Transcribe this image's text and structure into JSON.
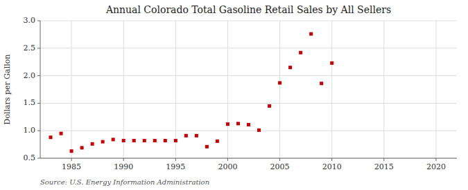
{
  "chart_data": {
    "type": "scatter",
    "title": "Annual Colorado Total Gasoline Retail Sales by All Sellers",
    "y_label": "Dollars per Gallon",
    "source": "Source: U.S. Energy Information Administration",
    "x": [
      1983,
      1984,
      1985,
      1986,
      1987,
      1988,
      1989,
      1990,
      1991,
      1992,
      1993,
      1994,
      1995,
      1996,
      1997,
      1998,
      1999,
      2000,
      2001,
      2002,
      2003,
      2004,
      2005,
      2006,
      2007,
      2008,
      2009,
      2010
    ],
    "values": [
      0.88,
      0.95,
      0.63,
      0.69,
      0.76,
      0.8,
      0.84,
      0.82,
      0.82,
      0.82,
      0.82,
      0.82,
      0.82,
      0.91,
      0.91,
      0.71,
      0.81,
      1.12,
      1.13,
      1.11,
      1.01,
      1.45,
      1.87,
      2.15,
      2.42,
      2.76,
      1.86,
      2.23
    ],
    "color": "#cc0000",
    "marker": "square",
    "xlim": [
      1982,
      2022
    ],
    "ylim": [
      0.5,
      3.0
    ],
    "xticks": [
      1985,
      1990,
      1995,
      2000,
      2005,
      2010,
      2015,
      2020
    ],
    "yticks": [
      0.5,
      {
        "value": 1,
        "label": "1.0"
      },
      1.5,
      {
        "value": 2,
        "label": "2.0"
      },
      2.5,
      {
        "value": 3,
        "label": "3.0"
      }
    ],
    "grid": true
  }
}
